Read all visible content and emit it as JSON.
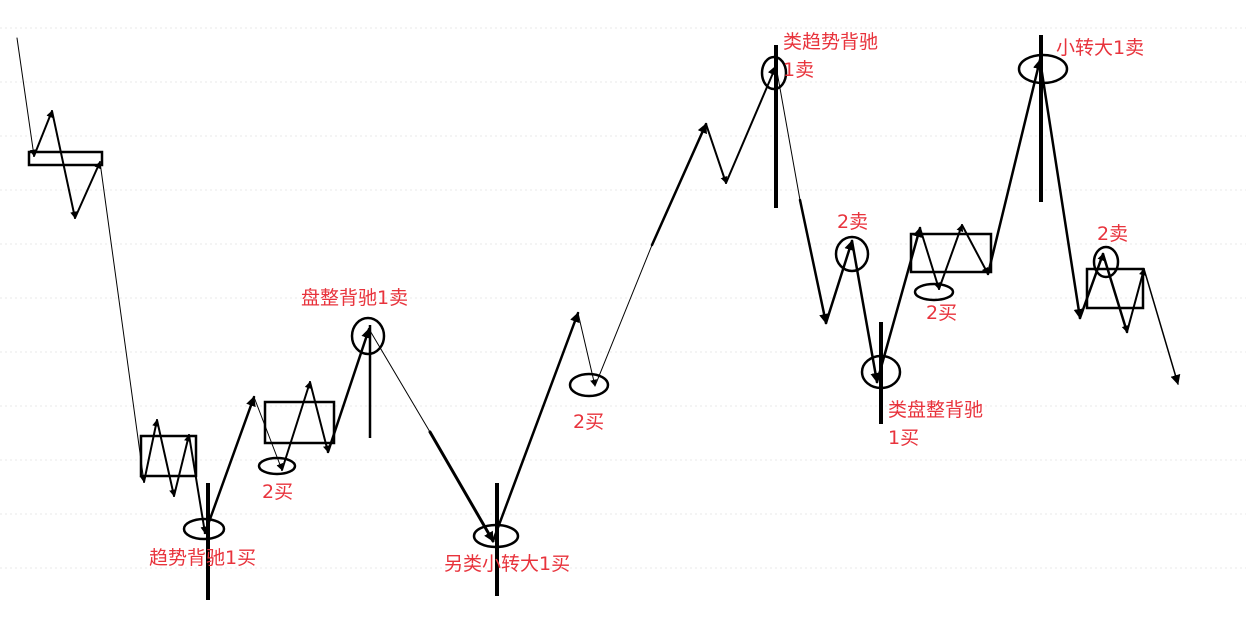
{
  "colors": {
    "label": "#e8333c",
    "line": "#000000",
    "grid": "#e9e9e9",
    "background": "#ffffff"
  },
  "labels": {
    "trend_div_1buy": "趋势背驰1买",
    "buy2_a": "2买",
    "consolidation_div_1sell": "盘整背驰1卖",
    "alt_small_to_big_1buy": "另类小转大1买",
    "buy2_b": "2买",
    "quasi_trend_div_l1": "类趋势背驰",
    "quasi_trend_div_l2": "1卖",
    "sell2_a": "2卖",
    "quasi_consol_div_l1": "类盘整背驰",
    "quasi_consol_div_l2": "1买",
    "buy2_c": "2买",
    "small_to_big_1sell": "小转大1卖",
    "sell2_b": "2卖"
  }
}
